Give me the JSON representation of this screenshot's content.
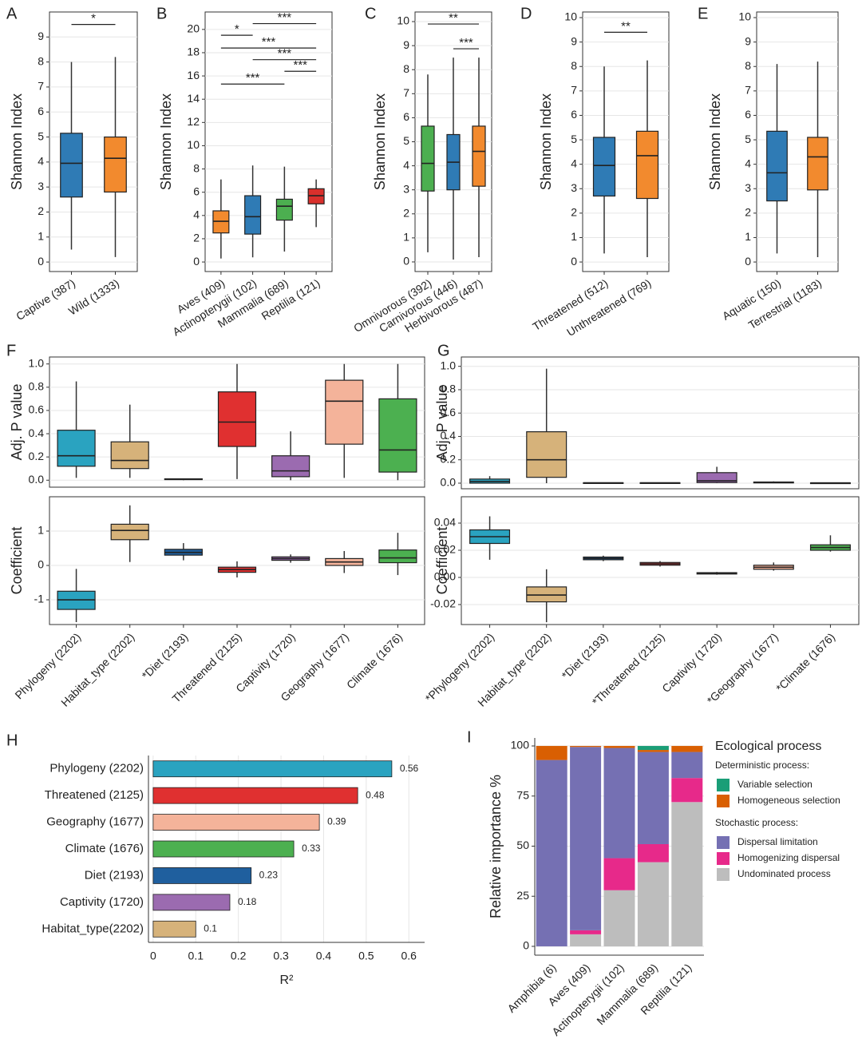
{
  "chart_data": [
    {
      "type": "box",
      "label": "A",
      "ylabel": "Shannon Index",
      "categories": [
        "Captive (387)",
        "Wild (1333)"
      ],
      "colors": [
        "#2f7bb5",
        "#f28a2e"
      ],
      "ylim": [
        -0.38,
        10
      ],
      "yticks": [
        0,
        1,
        2,
        3,
        4,
        5,
        6,
        7,
        8,
        9
      ],
      "boxes": [
        {
          "min": 0.5,
          "q1": 2.6,
          "median": 3.95,
          "q3": 5.15,
          "max": 8.0
        },
        {
          "min": 0.2,
          "q1": 2.8,
          "median": 4.15,
          "q3": 5.0,
          "max": 8.2
        }
      ],
      "brackets": [
        {
          "label": "*",
          "between": [
            0,
            1
          ],
          "y": 9.5
        }
      ]
    },
    {
      "type": "box",
      "label": "B",
      "ylabel": "Shannon Index",
      "categories": [
        "Aves (409)",
        "Actinopterygii (102)",
        "Mammalia (689)",
        "Reptilia (121)"
      ],
      "colors": [
        "#f28a2e",
        "#2f7bb5",
        "#4caf50",
        "#d9302c"
      ],
      "ylim": [
        -0.82,
        21.5
      ],
      "yticks": [
        0,
        2,
        4,
        6,
        8,
        10,
        12,
        14,
        16,
        18,
        20
      ],
      "boxes": [
        {
          "min": 0.3,
          "q1": 2.5,
          "median": 3.5,
          "q3": 4.4,
          "max": 7.1
        },
        {
          "min": 0.4,
          "q1": 2.4,
          "median": 3.9,
          "q3": 5.7,
          "max": 8.3
        },
        {
          "min": 0.9,
          "q1": 3.6,
          "median": 4.8,
          "q3": 5.4,
          "max": 8.2
        },
        {
          "min": 3.0,
          "q1": 5.0,
          "median": 5.7,
          "q3": 6.3,
          "max": 7.1
        }
      ],
      "brackets": [
        {
          "label": "***",
          "between": [
            1,
            3
          ],
          "y": 20.5
        },
        {
          "label": "*",
          "between": [
            0,
            1
          ],
          "y": 19.5
        },
        {
          "label": "***",
          "between": [
            0,
            3
          ],
          "y": 18.4
        },
        {
          "label": "***",
          "between": [
            1,
            3
          ],
          "y": 17.4
        },
        {
          "label": "***",
          "between": [
            2,
            3
          ],
          "y": 16.4
        },
        {
          "label": "***",
          "between": [
            0,
            2
          ],
          "y": 15.3
        }
      ]
    },
    {
      "type": "box",
      "label": "C",
      "ylabel": "Shannon Index",
      "categories": [
        "Omnivorous (392)",
        "Carnivorous (446)",
        "Herbivorous (487)"
      ],
      "colors": [
        "#4caf50",
        "#2f7bb5",
        "#f28a2e"
      ],
      "ylim": [
        -0.4,
        10.4
      ],
      "yticks": [
        0,
        1,
        2,
        3,
        4,
        5,
        6,
        7,
        8,
        9,
        10
      ],
      "boxes": [
        {
          "min": 0.4,
          "q1": 2.95,
          "median": 4.1,
          "q3": 5.65,
          "max": 7.8
        },
        {
          "min": 0.1,
          "q1": 3.0,
          "median": 4.15,
          "q3": 5.3,
          "max": 8.5
        },
        {
          "min": 0.2,
          "q1": 3.15,
          "median": 4.6,
          "q3": 5.65,
          "max": 8.5
        }
      ],
      "brackets": [
        {
          "label": "**",
          "between": [
            0,
            2
          ],
          "y": 9.9
        },
        {
          "label": "***",
          "between": [
            1,
            2
          ],
          "y": 8.87
        }
      ]
    },
    {
      "type": "box",
      "label": "D",
      "ylabel": "Shannon Index",
      "categories": [
        "Threatened (512)",
        "Unthreatened (769)"
      ],
      "colors": [
        "#2f7bb5",
        "#f28a2e"
      ],
      "ylim": [
        -0.39,
        10.23
      ],
      "yticks": [
        0,
        1,
        2,
        3,
        4,
        5,
        6,
        7,
        8,
        9,
        10
      ],
      "boxes": [
        {
          "min": 0.35,
          "q1": 2.7,
          "median": 3.95,
          "q3": 5.1,
          "max": 8.0
        },
        {
          "min": 0.2,
          "q1": 2.6,
          "median": 4.35,
          "q3": 5.35,
          "max": 8.25
        }
      ],
      "brackets": [
        {
          "label": "**",
          "between": [
            0,
            1
          ],
          "y": 9.4
        }
      ]
    },
    {
      "type": "box",
      "label": "E",
      "ylabel": "Shannon Index",
      "categories": [
        "Aquatic (150)",
        "Terrestrial (1183)"
      ],
      "colors": [
        "#2f7bb5",
        "#f28a2e"
      ],
      "ylim": [
        -0.39,
        10.23
      ],
      "yticks": [
        0,
        1,
        2,
        3,
        4,
        5,
        6,
        7,
        8,
        9,
        10
      ],
      "boxes": [
        {
          "min": 0.35,
          "q1": 2.5,
          "median": 3.65,
          "q3": 5.35,
          "max": 8.1
        },
        {
          "min": 0.2,
          "q1": 2.95,
          "median": 4.3,
          "q3": 5.1,
          "max": 8.2
        }
      ]
    },
    {
      "type": "box",
      "label": "F",
      "categories": [
        "Phylogeny (2202)",
        "Habitat_type (2202)",
        "*Diet (2193)",
        "Threatened (2125)",
        "Captivity (1720)",
        "Geography (1677)",
        "Climate (1676)"
      ],
      "colors": [
        "#2aa3c0",
        "#d6b27a",
        "#1f5f9e",
        "#e03030",
        "#9b6bb0",
        "#f4b39a",
        "#4cb050"
      ],
      "subplots": [
        {
          "ylabel": "Adj. P value",
          "ylim": [
            -0.06,
            1.06
          ],
          "yticks": [
            {
              "value": 0,
              "label": "0.0"
            },
            0.2,
            0.4,
            0.6,
            0.8,
            {
              "value": 1,
              "label": "1.0"
            }
          ],
          "boxes": [
            {
              "min": 0.02,
              "q1": 0.12,
              "median": 0.21,
              "q3": 0.43,
              "max": 0.85
            },
            {
              "min": 0.02,
              "q1": 0.1,
              "median": 0.17,
              "q3": 0.33,
              "max": 0.65
            },
            {
              "min": 0,
              "q1": 0.005,
              "median": 0.01,
              "q3": 0.012,
              "max": 0.015
            },
            {
              "min": 0.01,
              "q1": 0.29,
              "median": 0.5,
              "q3": 0.76,
              "max": 1.0
            },
            {
              "min": 0,
              "q1": 0.03,
              "median": 0.08,
              "q3": 0.21,
              "max": 0.42
            },
            {
              "min": 0.02,
              "q1": 0.31,
              "median": 0.68,
              "q3": 0.86,
              "max": 1.0
            },
            {
              "min": 0,
              "q1": 0.07,
              "median": 0.26,
              "q3": 0.7,
              "max": 1.0
            }
          ]
        },
        {
          "ylabel": "Coefficient",
          "ylim": [
            -1.72,
            2.0
          ],
          "yticks": [
            -1,
            0,
            1
          ],
          "boxes": [
            {
              "min": -1.65,
              "q1": -1.28,
              "median": -1.0,
              "q3": -0.75,
              "max": -0.1
            },
            {
              "min": 0.1,
              "q1": 0.75,
              "median": 1.02,
              "q3": 1.2,
              "max": 1.75
            },
            {
              "min": 0.15,
              "q1": 0.3,
              "median": 0.38,
              "q3": 0.47,
              "max": 0.65
            },
            {
              "min": -0.35,
              "q1": -0.2,
              "median": -0.12,
              "q3": -0.05,
              "max": 0.12
            },
            {
              "min": 0.08,
              "q1": 0.15,
              "median": 0.2,
              "q3": 0.25,
              "max": 0.32
            },
            {
              "min": -0.22,
              "q1": 0.0,
              "median": 0.1,
              "q3": 0.2,
              "max": 0.42
            },
            {
              "min": -0.28,
              "q1": 0.08,
              "median": 0.22,
              "q3": 0.45,
              "max": 0.95
            }
          ]
        }
      ]
    },
    {
      "type": "box",
      "label": "G",
      "categories": [
        "*Phylogeny (2202)",
        "Habitat_type (2202)",
        "*Diet (2193)",
        "*Threatened (2125)",
        "Captivity (1720)",
        "*Geography (1677)",
        "*Climate (1676)"
      ],
      "colors": [
        "#2aa3c0",
        "#d6b27a",
        "#1f5f9e",
        "#e03030",
        "#9b6bb0",
        "#f4b39a",
        "#4cb050"
      ],
      "subplots": [
        {
          "ylabel": "Adj. P value",
          "ylim": [
            -0.048,
            1.08
          ],
          "yticks": [
            {
              "value": 0,
              "label": "0.0"
            },
            0.2,
            0.4,
            0.6,
            0.8,
            {
              "value": 1,
              "label": "1.0"
            }
          ],
          "boxes": [
            {
              "min": 0,
              "q1": 0.0,
              "median": 0.015,
              "q3": 0.035,
              "max": 0.06
            },
            {
              "min": 0,
              "q1": 0.05,
              "median": 0.2,
              "q3": 0.44,
              "max": 0.98
            },
            {
              "min": 0,
              "q1": 0,
              "median": 0.002,
              "q3": 0.004,
              "max": 0.006
            },
            {
              "min": 0,
              "q1": 0,
              "median": 0.002,
              "q3": 0.004,
              "max": 0.006
            },
            {
              "min": 0,
              "q1": 0.005,
              "median": 0.02,
              "q3": 0.09,
              "max": 0.14
            },
            {
              "min": 0,
              "q1": 0.002,
              "median": 0.006,
              "q3": 0.01,
              "max": 0.015
            },
            {
              "min": 0,
              "q1": 0,
              "median": 0.002,
              "q3": 0.003,
              "max": 0.005
            }
          ]
        },
        {
          "ylabel": "Coefficient",
          "ylim": [
            -0.0347,
            0.0594
          ],
          "yticks": [
            -0.02,
            {
              "value": 0,
              "label": "0.00"
            },
            0.02,
            0.04
          ],
          "boxes": [
            {
              "min": 0.013,
              "q1": 0.025,
              "median": 0.03,
              "q3": 0.035,
              "max": 0.045
            },
            {
              "min": -0.033,
              "q1": -0.018,
              "median": -0.013,
              "q3": -0.007,
              "max": 0.006
            },
            {
              "min": 0.012,
              "q1": 0.013,
              "median": 0.014,
              "q3": 0.015,
              "max": 0.016
            },
            {
              "min": 0.008,
              "q1": 0.009,
              "median": 0.01,
              "q3": 0.011,
              "max": 0.012
            },
            {
              "min": 0.002,
              "q1": 0.0025,
              "median": 0.003,
              "q3": 0.0035,
              "max": 0.004
            },
            {
              "min": 0.005,
              "q1": 0.006,
              "median": 0.0075,
              "q3": 0.009,
              "max": 0.011
            },
            {
              "min": 0.019,
              "q1": 0.02,
              "median": 0.022,
              "q3": 0.024,
              "max": 0.031
            }
          ]
        }
      ]
    },
    {
      "type": "hbar",
      "label": "H",
      "xlabel": "R²",
      "categories": [
        "Phylogeny (2202)",
        "Threatened (2125)",
        "Geography (1677)",
        "Climate (1676)",
        "Diet (2193)",
        "Captivity (1720)",
        "Habitat_type(2202)"
      ],
      "values": [
        0.56,
        0.48,
        0.39,
        0.33,
        0.23,
        0.18,
        0.1
      ],
      "colors": [
        "#2aa3c0",
        "#e03030",
        "#f4b39a",
        "#4cb050",
        "#1f5f9e",
        "#9b6bb0",
        "#d6b27a"
      ],
      "xlim": [
        -0.011,
        0.637
      ],
      "xticks": [
        0,
        0.1,
        0.2,
        0.3,
        0.4,
        0.5,
        0.6
      ]
    },
    {
      "type": "stacked_bar",
      "label": "I",
      "ylabel": "Relative importance %",
      "categories": [
        "Amphibia (6)",
        "Aves (409)",
        "Actinopterygii (102)",
        "Mammalia (689)",
        "Reptilia (121)"
      ],
      "ylim": [
        -4.4,
        104
      ],
      "yticks": [
        0,
        25,
        50,
        75,
        100
      ],
      "series": [
        {
          "name": "Variable selection",
          "color": "#1a9e77",
          "values": [
            0,
            0,
            0,
            2,
            0
          ]
        },
        {
          "name": "Homogeneous selection",
          "color": "#d95f02",
          "values": [
            7,
            0.5,
            1,
            1,
            3
          ]
        },
        {
          "name": "Dispersal limitation",
          "color": "#7570b3",
          "values": [
            93,
            91.5,
            55,
            46,
            13
          ]
        },
        {
          "name": "Homogenizing dispersal",
          "color": "#e7298a",
          "values": [
            0,
            2,
            16,
            9,
            12
          ]
        },
        {
          "name": "Undominated process",
          "color": "#bdbdbd",
          "values": [
            0,
            6,
            28,
            42,
            72
          ]
        }
      ],
      "legend": {
        "title": "Ecological process",
        "groups": [
          {
            "title": "Deterministic process:",
            "series": [
              0,
              1
            ]
          },
          {
            "title": "Stochastic process:",
            "series": [
              2,
              3,
              4
            ]
          }
        ]
      }
    }
  ]
}
